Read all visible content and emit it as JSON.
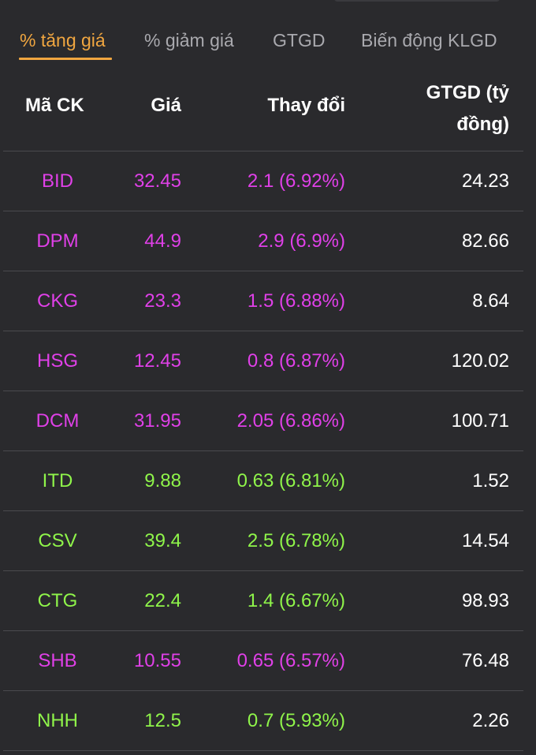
{
  "tabs": [
    {
      "label": "% tăng giá",
      "active": true
    },
    {
      "label": "% giảm giá",
      "active": false
    },
    {
      "label": "GTGD",
      "active": false
    },
    {
      "label": "Biến động KLGD",
      "active": false
    }
  ],
  "table": {
    "headers": {
      "code": "Mã CK",
      "price": "Giá",
      "change": "Thay đổi",
      "gtgd": "GTGD (tỷ đồng)"
    },
    "rows": [
      {
        "code": "BID",
        "price": "32.45",
        "change": "2.1 (6.92%)",
        "gtgd": "24.23",
        "color": "#e040e8"
      },
      {
        "code": "DPM",
        "price": "44.9",
        "change": "2.9 (6.9%)",
        "gtgd": "82.66",
        "color": "#e040e8"
      },
      {
        "code": "CKG",
        "price": "23.3",
        "change": "1.5 (6.88%)",
        "gtgd": "8.64",
        "color": "#e040e8"
      },
      {
        "code": "HSG",
        "price": "12.45",
        "change": "0.8 (6.87%)",
        "gtgd": "120.02",
        "color": "#e040e8"
      },
      {
        "code": "DCM",
        "price": "31.95",
        "change": "2.05 (6.86%)",
        "gtgd": "100.71",
        "color": "#e040e8"
      },
      {
        "code": "ITD",
        "price": "9.88",
        "change": "0.63 (6.81%)",
        "gtgd": "1.52",
        "color": "#8ff54a"
      },
      {
        "code": "CSV",
        "price": "39.4",
        "change": "2.5 (6.78%)",
        "gtgd": "14.54",
        "color": "#8ff54a"
      },
      {
        "code": "CTG",
        "price": "22.4",
        "change": "1.4 (6.67%)",
        "gtgd": "98.93",
        "color": "#8ff54a"
      },
      {
        "code": "SHB",
        "price": "10.55",
        "change": "0.65 (6.57%)",
        "gtgd": "76.48",
        "color": "#e040e8"
      },
      {
        "code": "NHH",
        "price": "12.5",
        "change": "0.7 (5.93%)",
        "gtgd": "2.26",
        "color": "#8ff54a"
      }
    ]
  },
  "colors": {
    "background": "#2a2a2d",
    "accent": "#f0a640",
    "ceiling": "#e040e8",
    "up": "#8ff54a"
  }
}
